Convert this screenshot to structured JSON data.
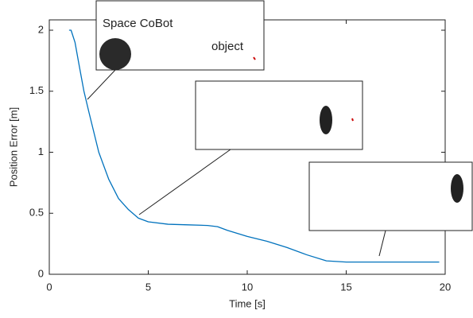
{
  "chart_data": {
    "type": "line",
    "xlabel": "Time [s]",
    "ylabel": "Position Error [m]",
    "x": [
      1,
      1.1,
      1.3,
      1.5,
      1.75,
      2,
      2.5,
      3,
      3.5,
      4,
      4.5,
      5,
      6,
      7,
      8,
      8.5,
      9,
      10,
      11,
      12,
      13,
      14,
      15,
      17,
      19.7
    ],
    "series": [
      {
        "color": "#0072bd",
        "values": [
          2,
          2,
          1.9,
          1.72,
          1.5,
          1.33,
          1.0,
          0.78,
          0.62,
          0.53,
          0.46,
          0.43,
          0.41,
          0.405,
          0.4,
          0.39,
          0.36,
          0.31,
          0.27,
          0.22,
          0.16,
          0.11,
          0.1,
          0.1,
          0.1
        ]
      }
    ],
    "xlim": [
      0,
      20
    ],
    "xticks": [
      0,
      5,
      10,
      15,
      20
    ],
    "ylim": [
      0,
      2
    ],
    "yticks": [
      0,
      0.5,
      1,
      1.5,
      2
    ],
    "annotations": [
      "Space CoBot",
      "object"
    ]
  }
}
